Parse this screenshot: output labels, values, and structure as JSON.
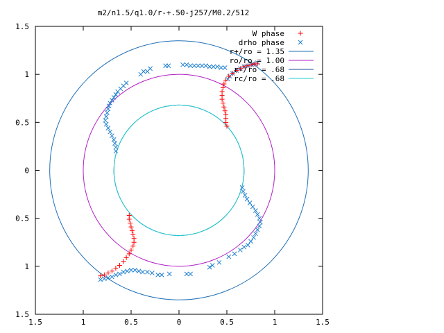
{
  "chart_data": {
    "type": "scatter",
    "title": "m2/n1.5/q1.0/r-+.50-j257/M0.2/512",
    "xlabel": "",
    "ylabel": "",
    "xlim": [
      -1.5,
      1.5
    ],
    "ylim": [
      -1.5,
      1.5
    ],
    "x_ticks": [
      -1.5,
      -1,
      -0.5,
      0,
      0.5,
      1,
      1.5
    ],
    "y_ticks": [
      -1.5,
      -1,
      -0.5,
      0,
      0.5,
      1,
      1.5
    ],
    "x_tick_labels": [
      "1.5",
      "1",
      "0.5",
      "0",
      "0.5",
      "1",
      "1.5"
    ],
    "y_tick_labels": [
      "1.5",
      "1",
      "0.5",
      "0",
      "0.5",
      "1",
      "1.5"
    ],
    "grid": false,
    "legend_position": "top-right",
    "circles": [
      {
        "name": "r+/ro = 1.35",
        "radius": 1.35,
        "color": "#1f6fb5"
      },
      {
        "name": "ro/ro = 1.00",
        "radius": 1.0,
        "color": "#b01ec4"
      },
      {
        "name": "r-/ro = .68",
        "radius": 0.68,
        "color": "#1a4d9c"
      },
      {
        "name": "rc/ro = .68",
        "radius": 0.68,
        "color": "#22cfd0"
      }
    ],
    "series": [
      {
        "name": "W phase",
        "marker": "plus",
        "color": "#ff0000",
        "points": [
          [
            0.5,
            0.46
          ],
          [
            0.49,
            0.5
          ],
          [
            0.49,
            0.54
          ],
          [
            0.49,
            0.58
          ],
          [
            0.48,
            0.62
          ],
          [
            0.47,
            0.66
          ],
          [
            0.46,
            0.7
          ],
          [
            0.45,
            0.74
          ],
          [
            0.45,
            0.78
          ],
          [
            0.45,
            0.82
          ],
          [
            0.46,
            0.86
          ],
          [
            0.47,
            0.9
          ],
          [
            0.49,
            0.94
          ],
          [
            0.52,
            0.98
          ],
          [
            0.56,
            1.01
          ],
          [
            0.6,
            1.04
          ],
          [
            0.64,
            1.06
          ],
          [
            0.68,
            1.08
          ],
          [
            0.72,
            1.09
          ],
          [
            0.76,
            1.1
          ],
          [
            0.79,
            1.11
          ],
          [
            0.82,
            1.11
          ],
          [
            -0.52,
            -0.47
          ],
          [
            -0.52,
            -0.51
          ],
          [
            -0.51,
            -0.55
          ],
          [
            -0.5,
            -0.59
          ],
          [
            -0.49,
            -0.63
          ],
          [
            -0.48,
            -0.67
          ],
          [
            -0.47,
            -0.71
          ],
          [
            -0.47,
            -0.75
          ],
          [
            -0.48,
            -0.79
          ],
          [
            -0.5,
            -0.83
          ],
          [
            -0.52,
            -0.87
          ],
          [
            -0.55,
            -0.91
          ],
          [
            -0.58,
            -0.95
          ],
          [
            -0.62,
            -0.99
          ],
          [
            -0.66,
            -1.02
          ],
          [
            -0.7,
            -1.05
          ],
          [
            -0.74,
            -1.07
          ],
          [
            -0.78,
            -1.09
          ],
          [
            -0.82,
            -1.1
          ]
        ]
      },
      {
        "name": "drho phase",
        "marker": "cross",
        "color": "#1f7fd0",
        "points": [
          [
            0.82,
            1.12
          ],
          [
            0.79,
            1.11
          ],
          [
            0.76,
            1.1
          ],
          [
            0.72,
            1.09
          ],
          [
            0.68,
            1.08
          ],
          [
            0.64,
            1.06
          ],
          [
            0.6,
            1.04
          ],
          [
            0.56,
            1.01
          ],
          [
            0.53,
            0.98
          ],
          [
            0.51,
            0.95
          ],
          [
            0.48,
            1.07
          ],
          [
            0.44,
            1.07
          ],
          [
            0.4,
            1.08
          ],
          [
            0.36,
            1.08
          ],
          [
            0.32,
            1.08
          ],
          [
            0.28,
            1.09
          ],
          [
            0.24,
            1.09
          ],
          [
            0.2,
            1.09
          ],
          [
            0.16,
            1.09
          ],
          [
            0.12,
            1.09
          ],
          [
            0.08,
            1.1
          ],
          [
            0.04,
            1.1
          ],
          [
            -0.11,
            1.09
          ],
          [
            -0.14,
            1.09
          ],
          [
            -0.3,
            1.06
          ],
          [
            -0.33,
            1.03
          ],
          [
            -0.37,
            1.03
          ],
          [
            -0.4,
            1.0
          ],
          [
            -0.55,
            0.91
          ],
          [
            -0.58,
            0.88
          ],
          [
            -0.61,
            0.85
          ],
          [
            -0.64,
            0.82
          ],
          [
            -0.66,
            0.79
          ],
          [
            -0.68,
            0.76
          ],
          [
            -0.7,
            0.73
          ],
          [
            -0.72,
            0.7
          ],
          [
            -0.73,
            0.67
          ],
          [
            -0.74,
            0.64
          ],
          [
            -0.75,
            0.6
          ],
          [
            -0.76,
            0.56
          ],
          [
            -0.77,
            0.52
          ],
          [
            -0.76,
            0.48
          ],
          [
            -0.74,
            0.44
          ],
          [
            -0.72,
            0.4
          ],
          [
            -0.7,
            0.36
          ],
          [
            -0.68,
            0.32
          ],
          [
            -0.67,
            0.28
          ],
          [
            -0.66,
            0.24
          ],
          [
            -0.66,
            0.2
          ],
          [
            0.66,
            -0.18
          ],
          [
            0.67,
            -0.22
          ],
          [
            0.69,
            -0.26
          ],
          [
            0.71,
            -0.3
          ],
          [
            0.74,
            -0.34
          ],
          [
            0.77,
            -0.38
          ],
          [
            0.8,
            -0.42
          ],
          [
            0.82,
            -0.46
          ],
          [
            0.84,
            -0.5
          ],
          [
            0.85,
            -0.54
          ],
          [
            0.84,
            -0.58
          ],
          [
            0.82,
            -0.62
          ],
          [
            0.8,
            -0.66
          ],
          [
            0.78,
            -0.7
          ],
          [
            0.75,
            -0.74
          ],
          [
            0.72,
            -0.78
          ],
          [
            0.68,
            -0.8
          ],
          [
            0.64,
            -0.83
          ],
          [
            0.58,
            -0.87
          ],
          [
            0.52,
            -0.9
          ],
          [
            0.42,
            -0.96
          ],
          [
            0.35,
            -0.99
          ],
          [
            0.32,
            -1.01
          ],
          [
            0.12,
            -1.08
          ],
          [
            0.08,
            -1.08
          ],
          [
            -0.1,
            -1.08
          ],
          [
            -0.18,
            -1.09
          ],
          [
            -0.22,
            -1.09
          ],
          [
            -0.28,
            -1.07
          ],
          [
            -0.33,
            -1.06
          ],
          [
            -0.38,
            -1.06
          ],
          [
            -0.42,
            -1.05
          ],
          [
            -0.46,
            -1.04
          ],
          [
            -0.5,
            -1.04
          ],
          [
            -0.54,
            -1.05
          ],
          [
            -0.58,
            -1.06
          ],
          [
            -0.62,
            -1.08
          ],
          [
            -0.66,
            -1.09
          ],
          [
            -0.7,
            -1.11
          ],
          [
            -0.74,
            -1.12
          ],
          [
            -0.78,
            -1.13
          ],
          [
            -0.82,
            -1.14
          ]
        ]
      }
    ]
  }
}
